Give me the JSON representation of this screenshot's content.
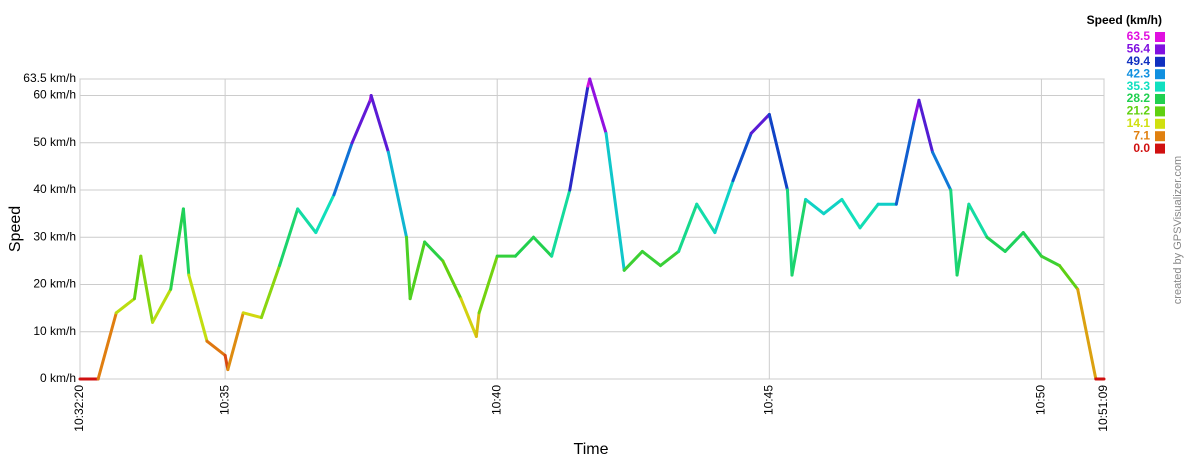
{
  "chart_data": {
    "type": "line",
    "y_label": "Speed",
    "x_label": "Time",
    "legend_title": "Speed (km/h)",
    "credit": "created by GPSVisualizer.com",
    "x": [
      "10:32:20",
      "10:32:40",
      "10:33:00",
      "10:33:20",
      "10:33:27",
      "10:33:40",
      "10:34:00",
      "10:34:14",
      "10:34:20",
      "10:34:40",
      "10:35:00",
      "10:35:03",
      "10:35:20",
      "10:35:40",
      "10:36:00",
      "10:36:20",
      "10:36:40",
      "10:37:00",
      "10:37:20",
      "10:37:40",
      "10:37:41",
      "10:38:00",
      "10:38:20",
      "10:38:24",
      "10:38:40",
      "10:39:00",
      "10:39:20",
      "10:39:37",
      "10:39:40",
      "10:40:00",
      "10:40:20",
      "10:40:40",
      "10:41:00",
      "10:41:20",
      "10:41:40",
      "10:41:42",
      "10:42:00",
      "10:42:20",
      "10:42:40",
      "10:43:00",
      "10:43:20",
      "10:43:40",
      "10:44:00",
      "10:44:20",
      "10:44:40",
      "10:45:00",
      "10:45:20",
      "10:45:25",
      "10:45:40",
      "10:46:00",
      "10:46:20",
      "10:46:40",
      "10:47:00",
      "10:47:20",
      "10:47:40",
      "10:47:45",
      "10:48:00",
      "10:48:20",
      "10:48:27",
      "10:48:40",
      "10:49:00",
      "10:49:20",
      "10:49:40",
      "10:50:00",
      "10:50:20",
      "10:50:40",
      "10:51:00",
      "10:51:09"
    ],
    "values": [
      0,
      0,
      14,
      17,
      26,
      12,
      19,
      36,
      22,
      8,
      5,
      2,
      14,
      13,
      24,
      36,
      31,
      39,
      50,
      59,
      60,
      48,
      30,
      17,
      29,
      25,
      17,
      9,
      14,
      26,
      26,
      30,
      26,
      40,
      62,
      63.5,
      52,
      23,
      27,
      24,
      27,
      37,
      31,
      42,
      52,
      56,
      40,
      22,
      38,
      35,
      38,
      32,
      37,
      37,
      55,
      59,
      48,
      40,
      22,
      37,
      30,
      27,
      31,
      26,
      24,
      19,
      0,
      0
    ],
    "xlim": [
      "10:32:20",
      "10:51:09"
    ],
    "xticks": [
      "10:32:20",
      "10:35",
      "10:40",
      "10:45",
      "10:50",
      "10:51:09"
    ],
    "ylim": [
      0,
      63.5
    ],
    "yticks": [
      {
        "value": 0,
        "label": "0 km/h"
      },
      {
        "value": 10,
        "label": "10 km/h"
      },
      {
        "value": 20,
        "label": "20 km/h"
      },
      {
        "value": 30,
        "label": "30 km/h"
      },
      {
        "value": 40,
        "label": "40 km/h"
      },
      {
        "value": 50,
        "label": "50 km/h"
      },
      {
        "value": 60,
        "label": "60 km/h"
      },
      {
        "value": 63.5,
        "label": "63.5 km/h"
      }
    ],
    "grid": true,
    "color_scale": [
      {
        "value": 63.5,
        "color": "#e010e0"
      },
      {
        "value": 56.4,
        "color": "#8010e0"
      },
      {
        "value": 49.4,
        "color": "#1030c0"
      },
      {
        "value": 42.3,
        "color": "#1090e0"
      },
      {
        "value": 35.3,
        "color": "#10e0c0"
      },
      {
        "value": 28.2,
        "color": "#20d050"
      },
      {
        "value": 21.2,
        "color": "#60d010"
      },
      {
        "value": 14.1,
        "color": "#d0e010"
      },
      {
        "value": 7.1,
        "color": "#e08010"
      },
      {
        "value": {
          "value": 0,
          "label": "0.0"
        },
        "color": "#d01010"
      }
    ]
  }
}
